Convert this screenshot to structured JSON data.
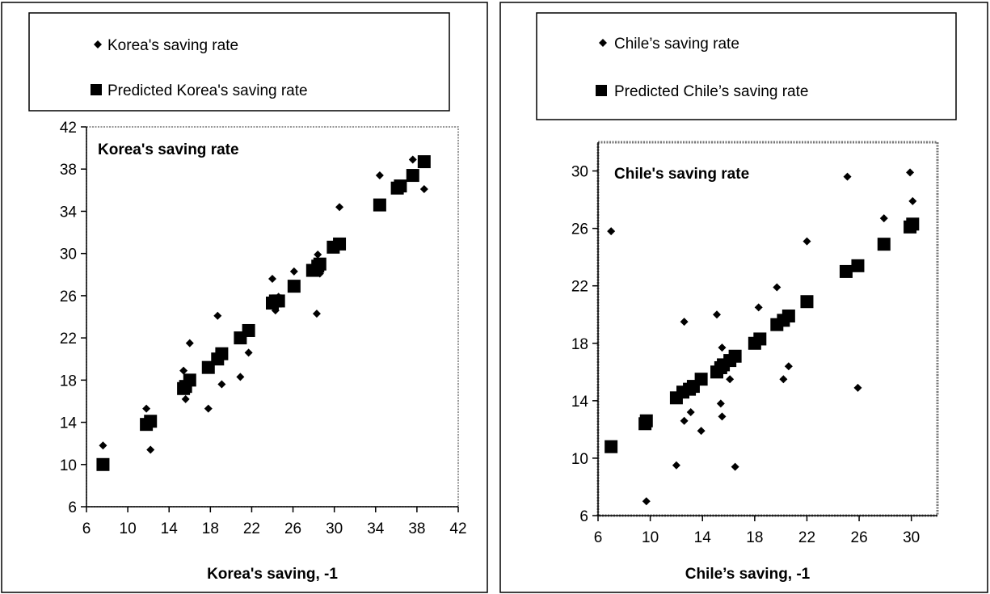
{
  "chart_data": [
    {
      "type": "scatter",
      "title": "Korea's saving rate",
      "xlabel": "Korea's saving, -1",
      "ylabel": "",
      "xlim": [
        6,
        42
      ],
      "ylim": [
        6,
        42
      ],
      "xticks": [
        "6",
        "10",
        "14",
        "18",
        "22",
        "26",
        "30",
        "34",
        "38",
        "42"
      ],
      "yticks": [
        "6",
        "10",
        "14",
        "18",
        "22",
        "26",
        "30",
        "34",
        "38",
        "42"
      ],
      "grid": false,
      "legend_position": "top",
      "series": [
        {
          "name": "Korea's saving rate",
          "marker": "diamond",
          "points": [
            [
              7.6,
              11.8
            ],
            [
              11.8,
              15.3
            ],
            [
              12.2,
              11.4
            ],
            [
              15.4,
              18.9
            ],
            [
              15.6,
              16.2
            ],
            [
              16.0,
              21.5
            ],
            [
              17.8,
              15.3
            ],
            [
              18.7,
              24.1
            ],
            [
              19.1,
              17.6
            ],
            [
              20.9,
              18.3
            ],
            [
              21.7,
              20.6
            ],
            [
              24.0,
              27.6
            ],
            [
              24.3,
              24.6
            ],
            [
              24.6,
              25.9
            ],
            [
              26.1,
              28.3
            ],
            [
              28.3,
              24.3
            ],
            [
              28.4,
              29.9
            ],
            [
              28.6,
              28.1
            ],
            [
              30.5,
              34.4
            ],
            [
              34.4,
              37.4
            ],
            [
              37.6,
              38.9
            ],
            [
              38.7,
              36.1
            ]
          ]
        },
        {
          "name": "Predicted Korea's saving rate",
          "marker": "square",
          "points": [
            [
              7.6,
              10.0
            ],
            [
              11.8,
              13.8
            ],
            [
              12.2,
              14.1
            ],
            [
              15.4,
              17.2
            ],
            [
              15.6,
              17.4
            ],
            [
              16.0,
              18.0
            ],
            [
              17.8,
              19.2
            ],
            [
              18.7,
              20.0
            ],
            [
              19.1,
              20.5
            ],
            [
              20.9,
              22.0
            ],
            [
              21.7,
              22.7
            ],
            [
              24.0,
              25.3
            ],
            [
              24.3,
              25.5
            ],
            [
              24.6,
              25.5
            ],
            [
              26.1,
              26.9
            ],
            [
              27.9,
              28.4
            ],
            [
              28.4,
              28.8
            ],
            [
              28.6,
              29.0
            ],
            [
              29.9,
              30.6
            ],
            [
              30.5,
              30.9
            ],
            [
              34.4,
              34.6
            ],
            [
              36.1,
              36.2
            ],
            [
              36.4,
              36.4
            ],
            [
              37.6,
              37.4
            ],
            [
              38.7,
              38.7
            ]
          ]
        }
      ]
    },
    {
      "type": "scatter",
      "title": "Chile's saving rate",
      "xlabel": "Chile’s saving, -1",
      "ylabel": "",
      "xlim": [
        6,
        32
      ],
      "ylim": [
        6,
        32
      ],
      "xticks": [
        "6",
        "10",
        "14",
        "18",
        "22",
        "26",
        "30"
      ],
      "yticks": [
        "6",
        "10",
        "14",
        "18",
        "22",
        "26",
        "30"
      ],
      "grid": false,
      "legend_position": "top",
      "series": [
        {
          "name": "Chile’s saving rate",
          "marker": "diamond",
          "points": [
            [
              7.0,
              25.8
            ],
            [
              9.7,
              7.0
            ],
            [
              12.0,
              9.5
            ],
            [
              12.6,
              19.5
            ],
            [
              12.6,
              12.6
            ],
            [
              13.0,
              15.0
            ],
            [
              13.1,
              13.2
            ],
            [
              13.9,
              11.9
            ],
            [
              15.1,
              20.0
            ],
            [
              15.4,
              13.8
            ],
            [
              15.5,
              17.7
            ],
            [
              15.5,
              12.9
            ],
            [
              16.1,
              15.5
            ],
            [
              16.5,
              9.4
            ],
            [
              18.3,
              20.5
            ],
            [
              19.7,
              21.9
            ],
            [
              20.2,
              15.5
            ],
            [
              20.6,
              16.4
            ],
            [
              22.0,
              25.1
            ],
            [
              25.1,
              29.6
            ],
            [
              25.9,
              14.9
            ],
            [
              27.9,
              26.7
            ],
            [
              29.9,
              29.9
            ],
            [
              30.1,
              27.9
            ]
          ]
        },
        {
          "name": "Predicted Chile’s saving rate",
          "marker": "square",
          "points": [
            [
              7.0,
              10.8
            ],
            [
              9.6,
              12.4
            ],
            [
              9.7,
              12.6
            ],
            [
              12.0,
              14.2
            ],
            [
              12.5,
              14.6
            ],
            [
              13.0,
              14.8
            ],
            [
              13.3,
              15.0
            ],
            [
              13.9,
              15.5
            ],
            [
              15.1,
              16.0
            ],
            [
              15.4,
              16.3
            ],
            [
              15.6,
              16.5
            ],
            [
              16.1,
              16.8
            ],
            [
              16.5,
              17.1
            ],
            [
              18.0,
              18.0
            ],
            [
              18.4,
              18.3
            ],
            [
              19.7,
              19.3
            ],
            [
              20.2,
              19.6
            ],
            [
              20.6,
              19.9
            ],
            [
              22.0,
              20.9
            ],
            [
              25.0,
              23.0
            ],
            [
              25.9,
              23.4
            ],
            [
              27.9,
              24.9
            ],
            [
              29.9,
              26.1
            ],
            [
              30.1,
              26.3
            ]
          ]
        }
      ]
    }
  ]
}
